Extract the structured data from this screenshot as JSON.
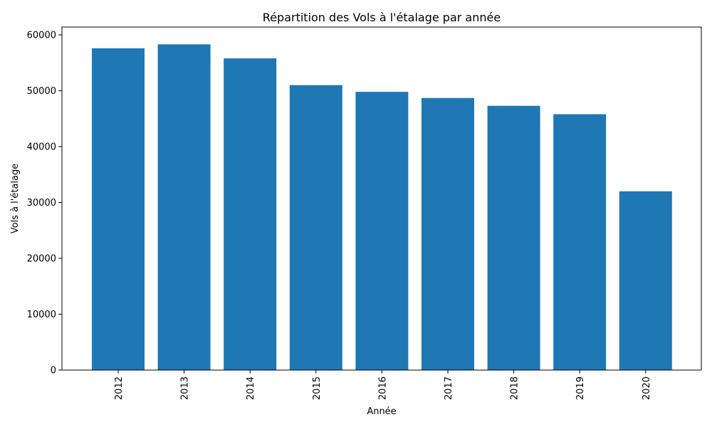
{
  "chart_data": {
    "type": "bar",
    "title": "Répartition des Vols à l'étalage par année",
    "xlabel": "Année",
    "ylabel": "Vols à l'étalage",
    "categories": [
      "2012",
      "2013",
      "2014",
      "2015",
      "2016",
      "2017",
      "2018",
      "2019",
      "2020"
    ],
    "values": [
      57600,
      58300,
      55800,
      51000,
      49800,
      48700,
      47300,
      45800,
      32000
    ],
    "ylim": [
      0,
      61400
    ],
    "yticks": [
      0,
      10000,
      20000,
      30000,
      40000,
      50000,
      60000
    ],
    "ytick_labels": [
      "0",
      "10000",
      "20000",
      "30000",
      "40000",
      "50000",
      "60000"
    ],
    "xtick_rotation": "vertical",
    "grid": false,
    "bar_color": "#1f77b4"
  }
}
